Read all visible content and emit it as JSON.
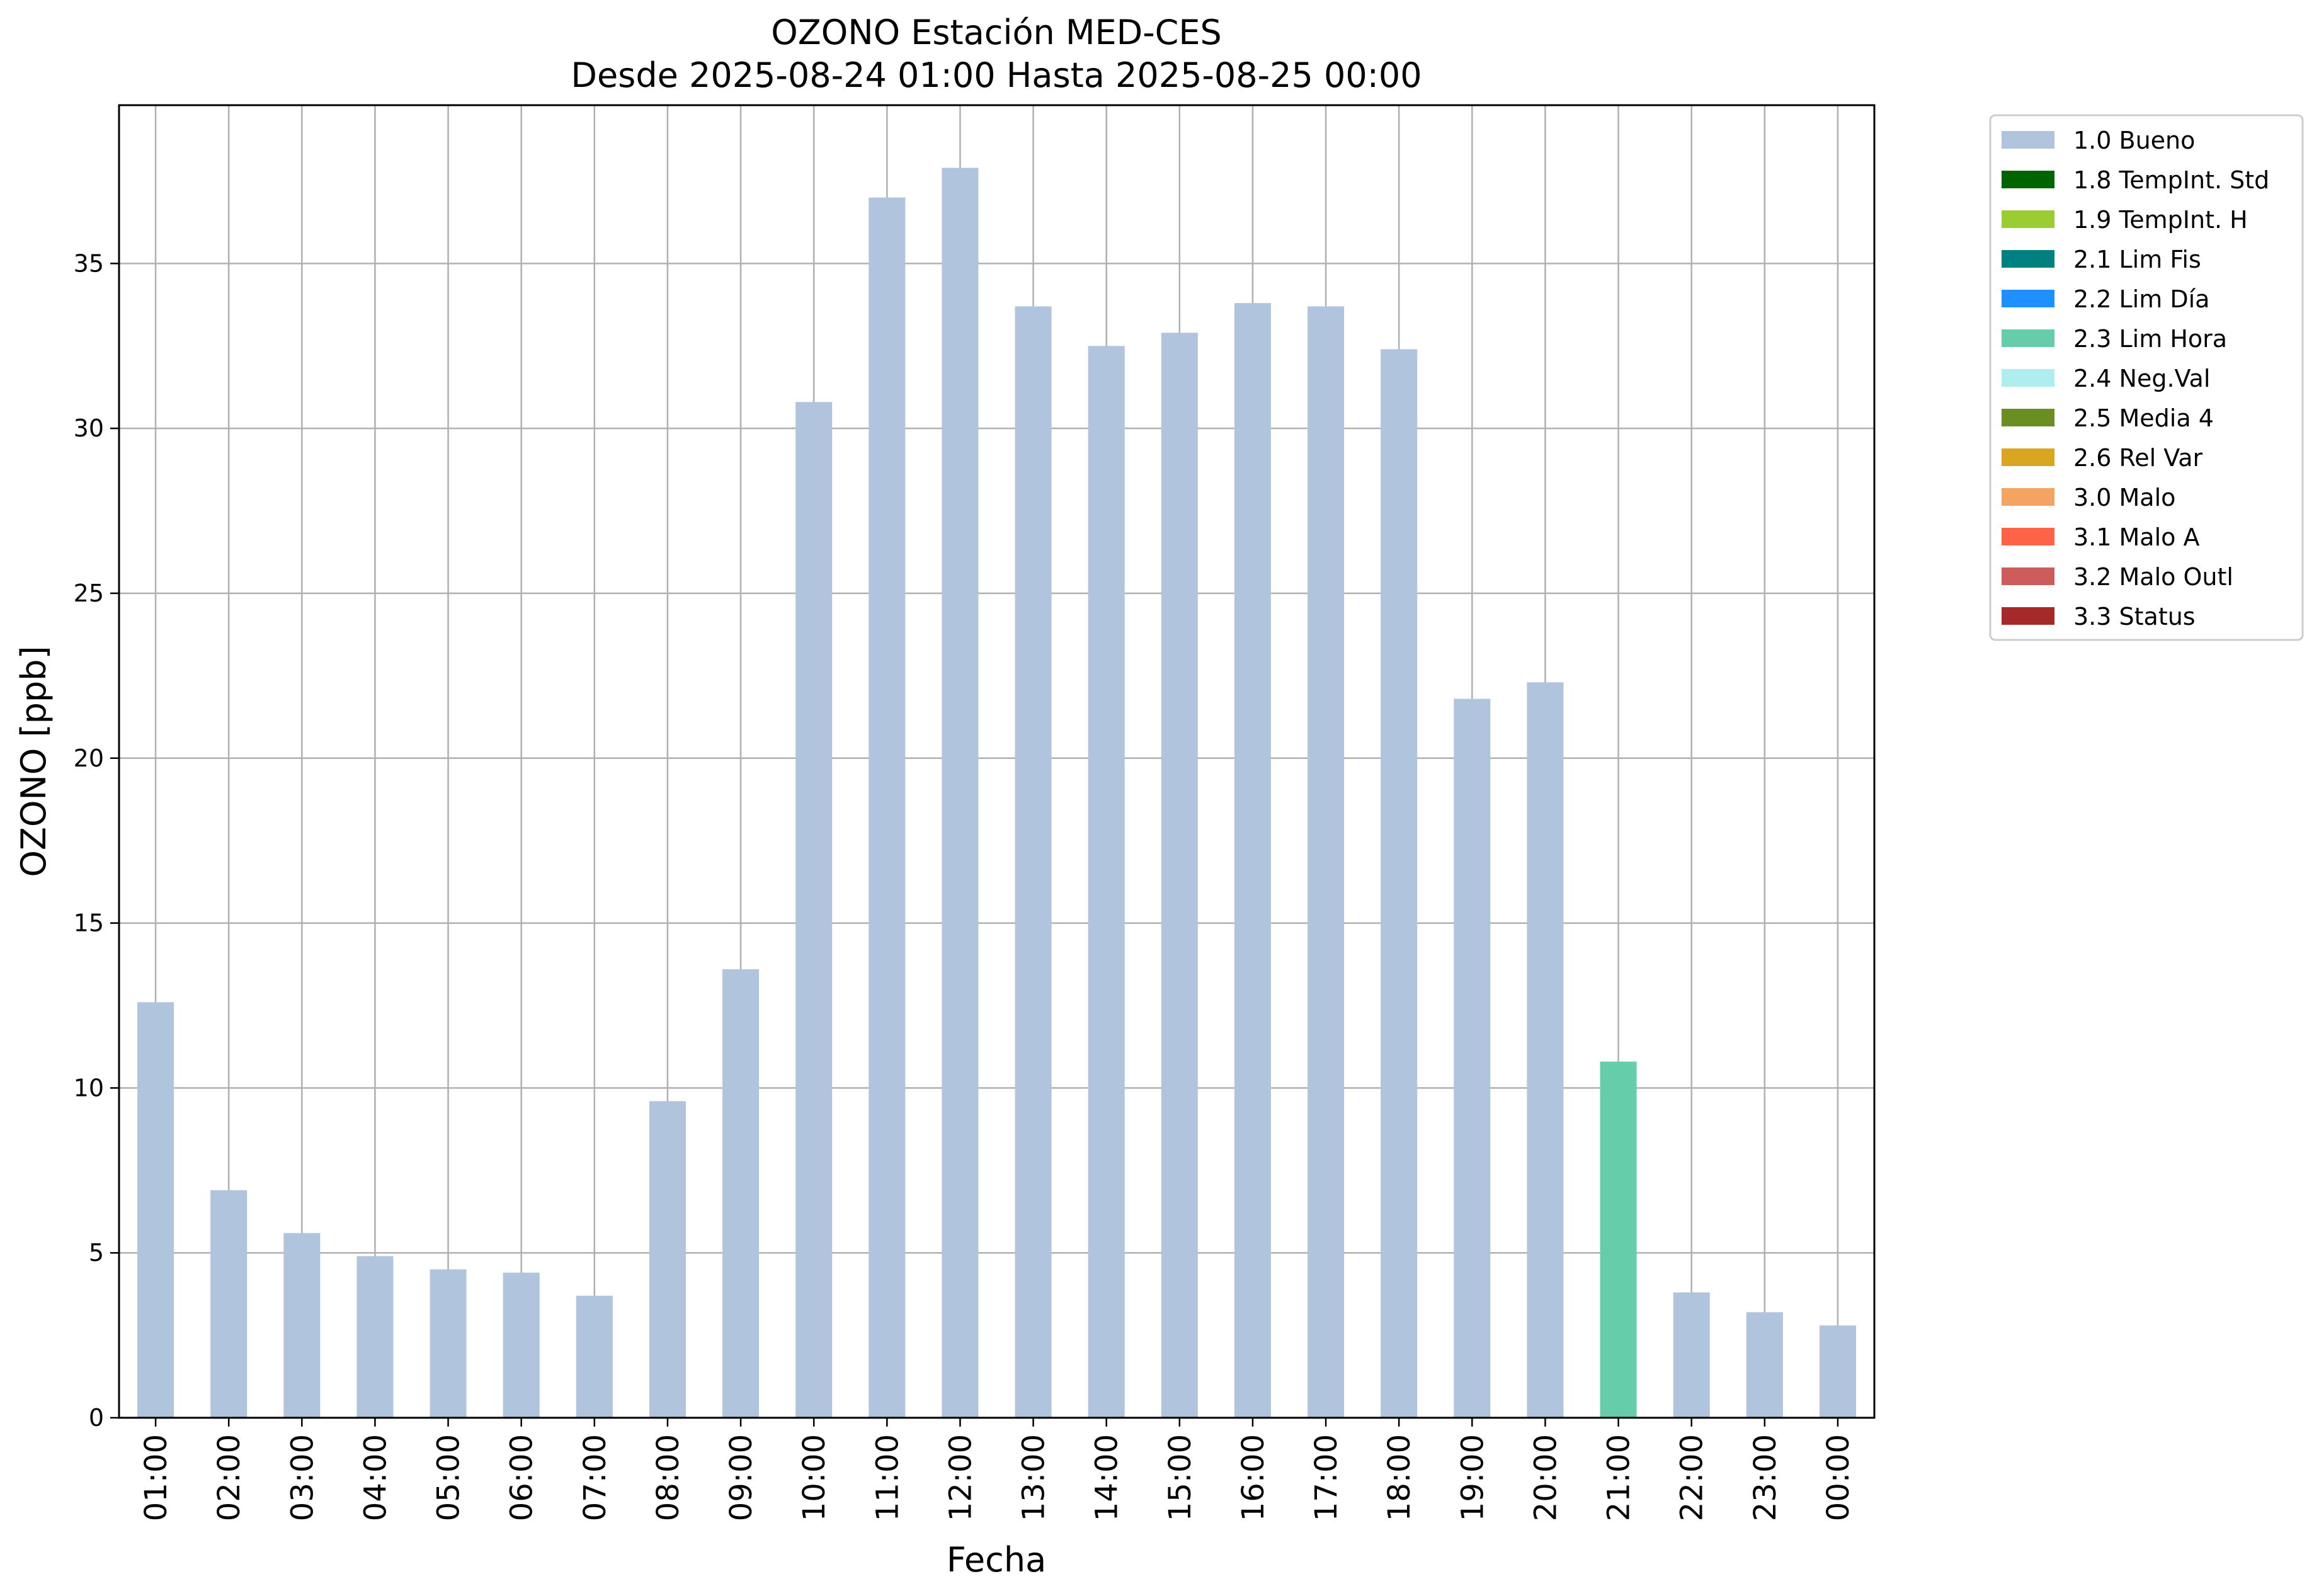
{
  "chart_data": {
    "type": "bar",
    "title": "OZONO Estación MED-CES",
    "subtitle": "Desde 2025-08-24 01:00 Hasta 2025-08-25 00:00",
    "xlabel": "Fecha",
    "ylabel": "OZONO [ppb]",
    "ylim": [
      0,
      39.8
    ],
    "yticks": [
      0,
      5,
      10,
      15,
      20,
      25,
      30,
      35
    ],
    "grid": true,
    "legend_position": "outside-right",
    "categories": [
      "01:00",
      "02:00",
      "03:00",
      "04:00",
      "05:00",
      "06:00",
      "07:00",
      "08:00",
      "09:00",
      "10:00",
      "11:00",
      "12:00",
      "13:00",
      "14:00",
      "15:00",
      "16:00",
      "17:00",
      "18:00",
      "19:00",
      "20:00",
      "21:00",
      "22:00",
      "23:00",
      "00:00"
    ],
    "values": [
      12.6,
      6.9,
      5.6,
      4.9,
      4.5,
      4.4,
      3.7,
      9.6,
      13.6,
      30.8,
      37.0,
      37.9,
      33.7,
      32.5,
      32.9,
      33.8,
      33.7,
      32.4,
      21.8,
      22.3,
      10.8,
      3.8,
      3.2,
      2.8
    ],
    "flags": [
      "1.0 Bueno",
      "1.0 Bueno",
      "1.0 Bueno",
      "1.0 Bueno",
      "1.0 Bueno",
      "1.0 Bueno",
      "1.0 Bueno",
      "1.0 Bueno",
      "1.0 Bueno",
      "1.0 Bueno",
      "1.0 Bueno",
      "1.0 Bueno",
      "1.0 Bueno",
      "1.0 Bueno",
      "1.0 Bueno",
      "1.0 Bueno",
      "1.0 Bueno",
      "1.0 Bueno",
      "1.0 Bueno",
      "1.0 Bueno",
      "2.3 Lim Hora",
      "1.0 Bueno",
      "1.0 Bueno",
      "1.0 Bueno"
    ],
    "legend": [
      {
        "label": "1.0 Bueno",
        "color": "#b0c4de"
      },
      {
        "label": "1.8 TempInt. Std",
        "color": "#006400"
      },
      {
        "label": "1.9 TempInt. H",
        "color": "#9acd32"
      },
      {
        "label": "2.1 Lim Fis",
        "color": "#008080"
      },
      {
        "label": "2.2 Lim Día",
        "color": "#1e90ff"
      },
      {
        "label": "2.3 Lim Hora",
        "color": "#66cdaa"
      },
      {
        "label": "2.4 Neg.Val",
        "color": "#afeeee"
      },
      {
        "label": "2.5 Media 4",
        "color": "#6b8e23"
      },
      {
        "label": "2.6 Rel Var",
        "color": "#daa520"
      },
      {
        "label": "3.0 Malo",
        "color": "#f4a460"
      },
      {
        "label": "3.1 Malo A",
        "color": "#ff6347"
      },
      {
        "label": "3.2 Malo Outl",
        "color": "#cd5c5c"
      },
      {
        "label": "3.3 Status",
        "color": "#a52a2a"
      }
    ]
  }
}
